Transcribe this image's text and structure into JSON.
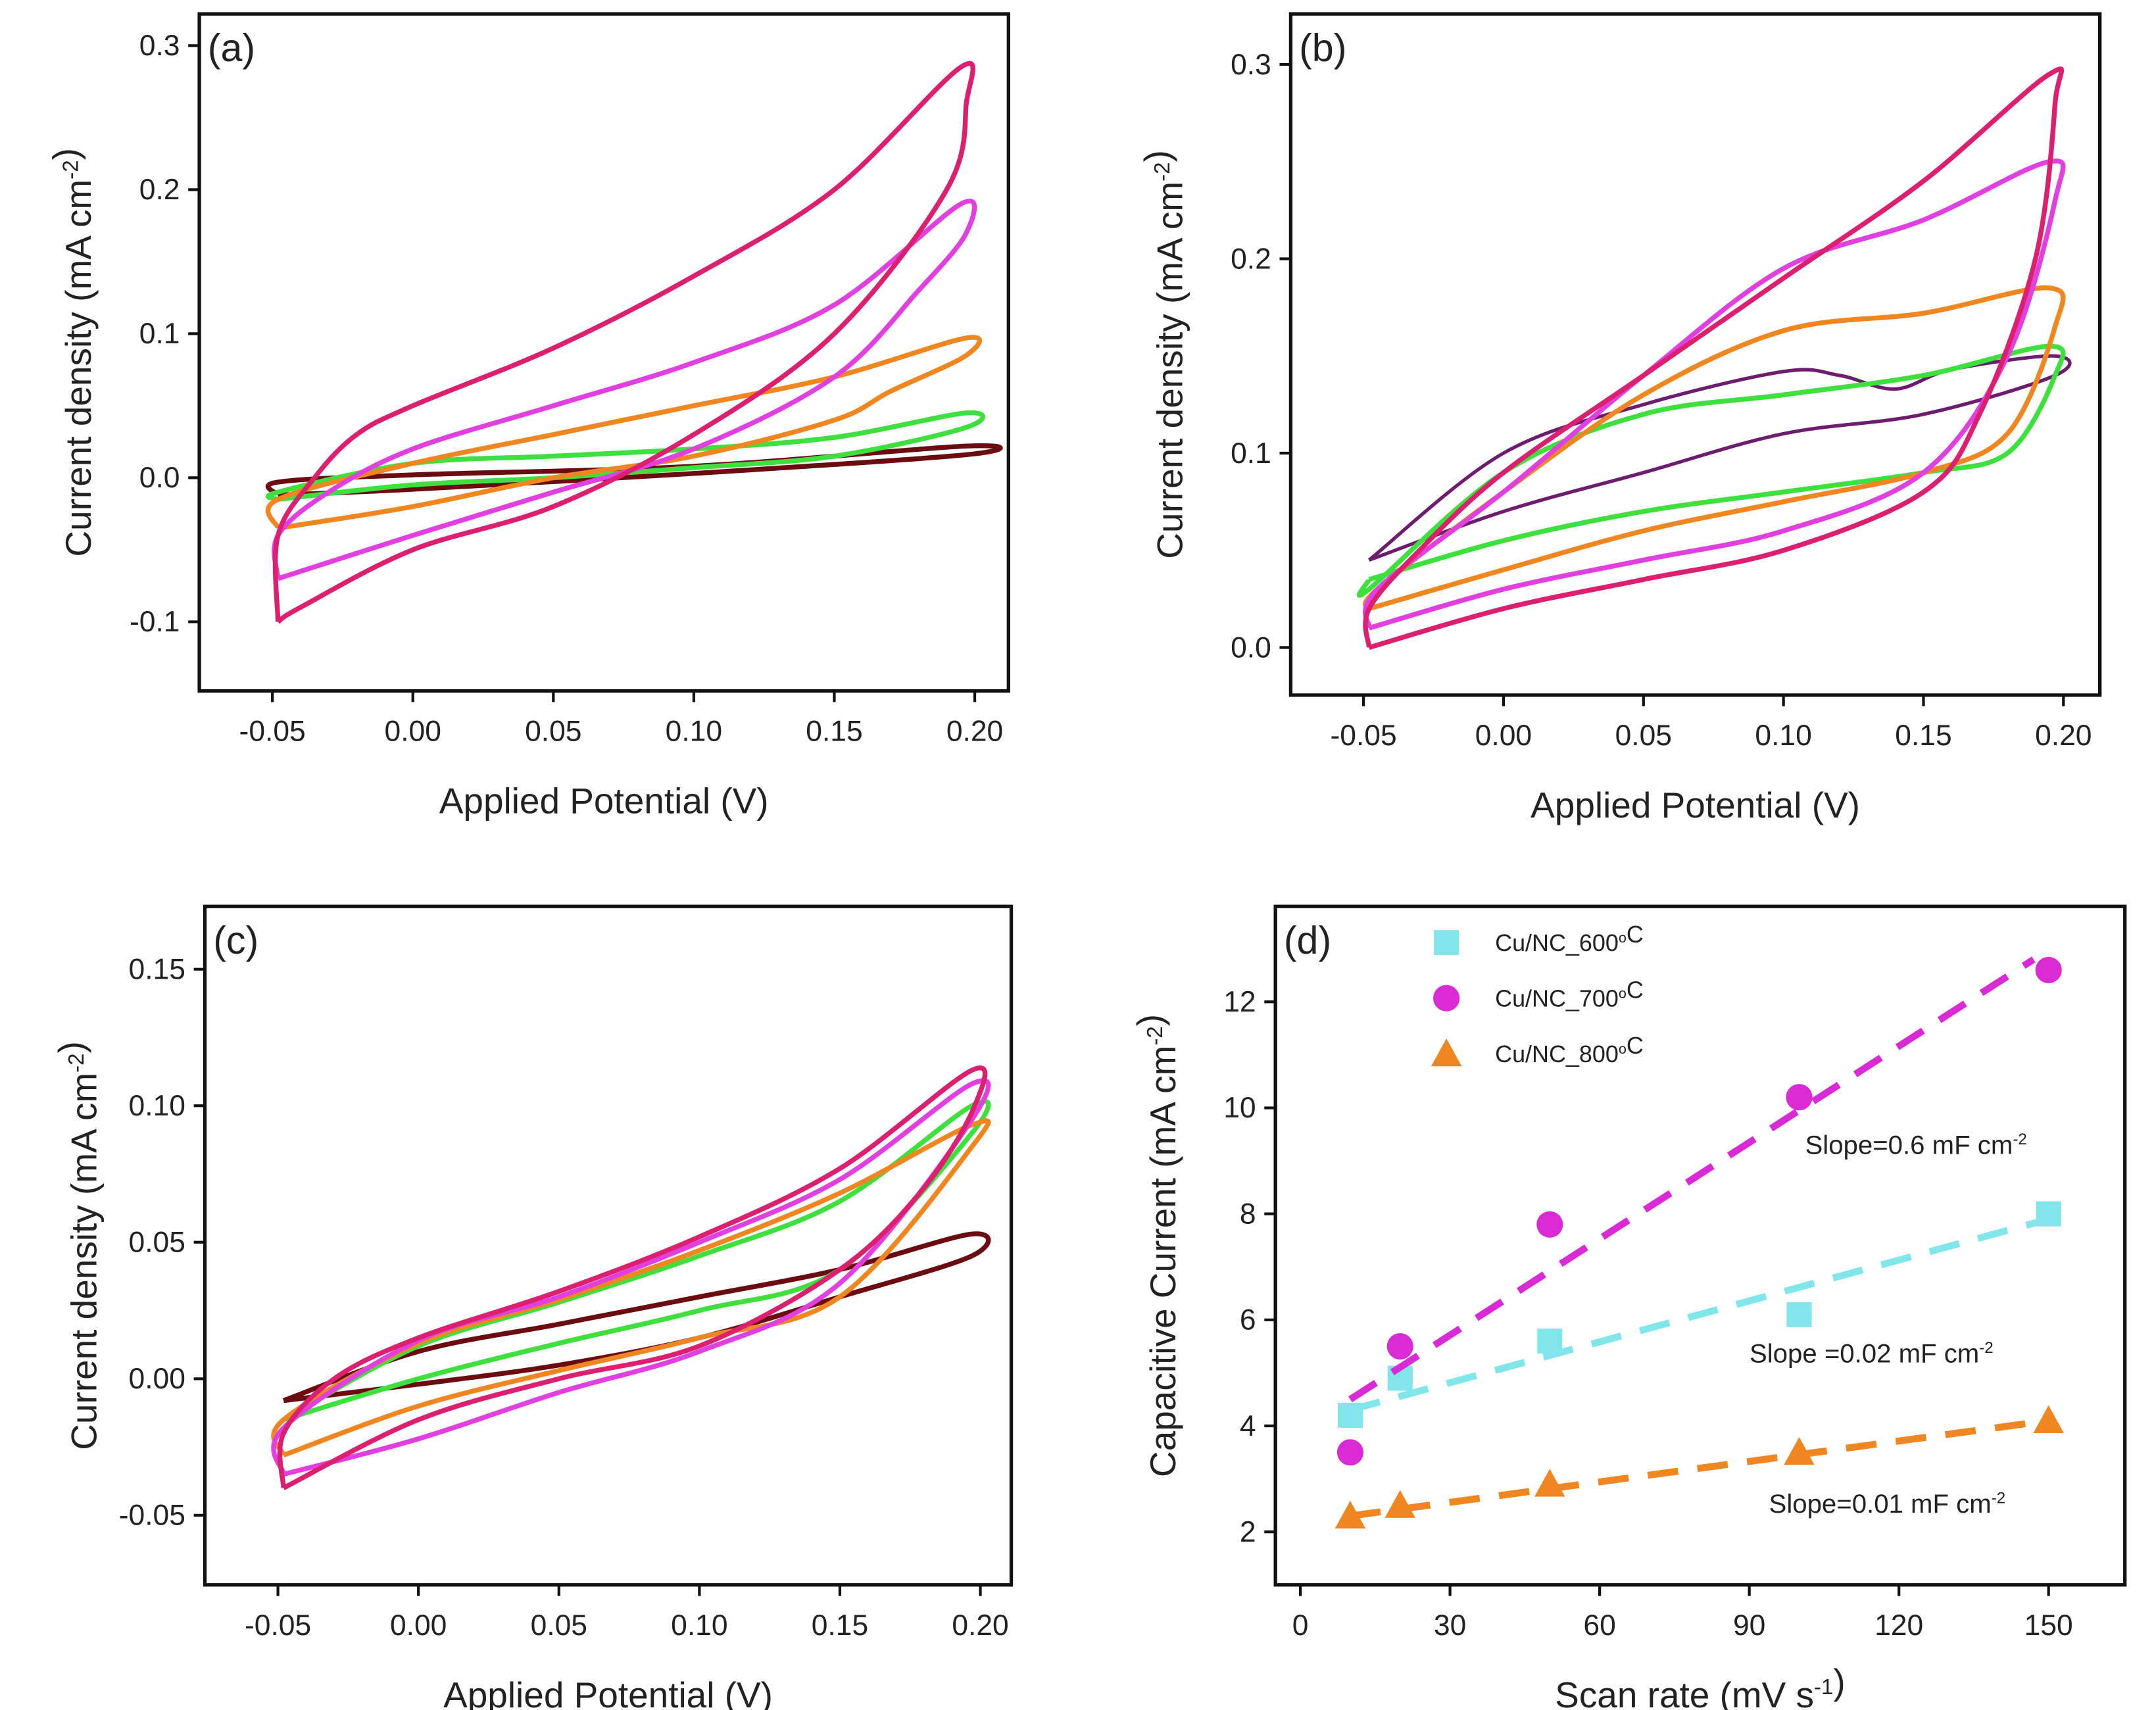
{
  "colors": {
    "crimson": "#dc1f6e",
    "magenta": "#e23fe0",
    "orange": "#f0861f",
    "green": "#3ee03e",
    "darkred": "#6b0d10",
    "purple": "#6e1c6e",
    "cyan": "#80e6ea",
    "dmagenta": "#d92ad6"
  },
  "chart_data": [
    {
      "id": "a",
      "type": "line",
      "panel_label": "(a)",
      "xlabel": "Applied Potential (V)",
      "ylabel": "Current density (mA cm",
      "ylabel_sup": "-2",
      "ylabel_end": ")",
      "xlim": [
        -0.076,
        0.212
      ],
      "ylim": [
        -0.148,
        0.322
      ],
      "xticks": [
        "-0.05",
        "0.00",
        "0.05",
        "0.10",
        "0.15",
        "0.20"
      ],
      "yticks": [
        "-0.1",
        "0.0",
        "0.1",
        "0.2",
        "0.3"
      ],
      "series": [
        {
          "color": "darkred",
          "points": [
            [
              -0.048,
              -0.012
            ],
            [
              -0.048,
              -0.003
            ],
            [
              0,
              0.002
            ],
            [
              0.1,
              0.008
            ],
            [
              0.197,
              0.022
            ],
            [
              0.197,
              0.016
            ],
            [
              0.1,
              0.003
            ],
            [
              0,
              -0.008
            ],
            [
              -0.048,
              -0.012
            ]
          ]
        },
        {
          "color": "green",
          "points": [
            [
              -0.048,
              -0.015
            ],
            [
              -0.048,
              -0.01
            ],
            [
              0,
              0.01
            ],
            [
              0.05,
              0.015
            ],
            [
              0.1,
              0.02
            ],
            [
              0.15,
              0.028
            ],
            [
              0.197,
              0.045
            ],
            [
              0.197,
              0.035
            ],
            [
              0.15,
              0.015
            ],
            [
              0.1,
              0.007
            ],
            [
              0.05,
              0
            ],
            [
              0,
              -0.005
            ],
            [
              -0.048,
              -0.015
            ]
          ]
        },
        {
          "color": "orange",
          "points": [
            [
              -0.048,
              -0.035
            ],
            [
              -0.048,
              -0.015
            ],
            [
              0,
              0.01
            ],
            [
              0.05,
              0.03
            ],
            [
              0.1,
              0.05
            ],
            [
              0.15,
              0.07
            ],
            [
              0.197,
              0.097
            ],
            [
              0.197,
              0.085
            ],
            [
              0.17,
              0.06
            ],
            [
              0.15,
              0.04
            ],
            [
              0.1,
              0.015
            ],
            [
              0.05,
              0
            ],
            [
              0,
              -0.02
            ],
            [
              -0.048,
              -0.035
            ]
          ]
        },
        {
          "color": "magenta",
          "points": [
            [
              -0.048,
              -0.07
            ],
            [
              -0.048,
              -0.04
            ],
            [
              -0.03,
              -0.01
            ],
            [
              0,
              0.02
            ],
            [
              0.05,
              0.05
            ],
            [
              0.1,
              0.08
            ],
            [
              0.15,
              0.12
            ],
            [
              0.195,
              0.19
            ],
            [
              0.197,
              0.17
            ],
            [
              0.18,
              0.13
            ],
            [
              0.15,
              0.07
            ],
            [
              0.1,
              0.02
            ],
            [
              0.05,
              -0.01
            ],
            [
              0,
              -0.04
            ],
            [
              -0.048,
              -0.07
            ]
          ]
        },
        {
          "color": "crimson",
          "points": [
            [
              -0.048,
              -0.1
            ],
            [
              -0.048,
              -0.04
            ],
            [
              -0.035,
              0
            ],
            [
              -0.02,
              0.03
            ],
            [
              0,
              0.05
            ],
            [
              0.05,
              0.09
            ],
            [
              0.1,
              0.14
            ],
            [
              0.15,
              0.2
            ],
            [
              0.195,
              0.285
            ],
            [
              0.197,
              0.26
            ],
            [
              0.19,
              0.2
            ],
            [
              0.15,
              0.1
            ],
            [
              0.1,
              0.03
            ],
            [
              0.05,
              -0.02
            ],
            [
              0,
              -0.05
            ],
            [
              -0.04,
              -0.09
            ],
            [
              -0.048,
              -0.1
            ]
          ]
        }
      ]
    },
    {
      "id": "b",
      "type": "line",
      "panel_label": "(b)",
      "xlabel": "Applied Potential (V)",
      "ylabel": "Current density (mA cm",
      "ylabel_sup": "-2",
      "ylabel_end": ")",
      "xlim": [
        -0.076,
        0.213
      ],
      "ylim": [
        -0.0245,
        0.326
      ],
      "xticks": [
        "-0.05",
        "0.00",
        "0.05",
        "0.10",
        "0.15",
        "0.20"
      ],
      "yticks": [
        "0.0",
        "0.1",
        "0.2",
        "0.3"
      ],
      "series": [
        {
          "color": "purple",
          "points": [
            [
              -0.048,
              0.045
            ],
            [
              0,
              0.1
            ],
            [
              0.05,
              0.125
            ],
            [
              0.1,
              0.142
            ],
            [
              0.12,
              0.14
            ],
            [
              0.14,
              0.133
            ],
            [
              0.16,
              0.143
            ],
            [
              0.197,
              0.15
            ],
            [
              0.197,
              0.14
            ],
            [
              0.15,
              0.12
            ],
            [
              0.1,
              0.11
            ],
            [
              0.05,
              0.09
            ],
            [
              0,
              0.07
            ],
            [
              -0.048,
              0.045
            ]
          ]
        },
        {
          "color": "green",
          "points": [
            [
              -0.048,
              0.035
            ],
            [
              -0.048,
              0.03
            ],
            [
              0,
              0.09
            ],
            [
              0.05,
              0.12
            ],
            [
              0.1,
              0.13
            ],
            [
              0.15,
              0.14
            ],
            [
              0.195,
              0.155
            ],
            [
              0.197,
              0.14
            ],
            [
              0.18,
              0.1
            ],
            [
              0.15,
              0.09
            ],
            [
              0.1,
              0.08
            ],
            [
              0.05,
              0.07
            ],
            [
              0,
              0.055
            ],
            [
              -0.048,
              0.035
            ]
          ]
        },
        {
          "color": "orange",
          "points": [
            [
              -0.048,
              0.02
            ],
            [
              -0.045,
              0.03
            ],
            [
              0,
              0.08
            ],
            [
              0.05,
              0.13
            ],
            [
              0.1,
              0.163
            ],
            [
              0.15,
              0.172
            ],
            [
              0.195,
              0.185
            ],
            [
              0.197,
              0.165
            ],
            [
              0.18,
              0.11
            ],
            [
              0.15,
              0.09
            ],
            [
              0.1,
              0.075
            ],
            [
              0.05,
              0.06
            ],
            [
              0,
              0.04
            ],
            [
              -0.048,
              0.02
            ]
          ]
        },
        {
          "color": "magenta",
          "points": [
            [
              -0.048,
              0.01
            ],
            [
              -0.045,
              0.03
            ],
            [
              0,
              0.08
            ],
            [
              0.05,
              0.14
            ],
            [
              0.1,
              0.195
            ],
            [
              0.15,
              0.22
            ],
            [
              0.195,
              0.25
            ],
            [
              0.197,
              0.23
            ],
            [
              0.18,
              0.15
            ],
            [
              0.15,
              0.09
            ],
            [
              0.1,
              0.06
            ],
            [
              0.05,
              0.045
            ],
            [
              0,
              0.03
            ],
            [
              -0.048,
              0.01
            ]
          ]
        },
        {
          "color": "crimson",
          "points": [
            [
              -0.048,
              0
            ],
            [
              -0.048,
              0.02
            ],
            [
              -0.03,
              0.05
            ],
            [
              0,
              0.09
            ],
            [
              0.05,
              0.14
            ],
            [
              0.1,
              0.19
            ],
            [
              0.15,
              0.24
            ],
            [
              0.195,
              0.295
            ],
            [
              0.197,
              0.28
            ],
            [
              0.19,
              0.2
            ],
            [
              0.17,
              0.12
            ],
            [
              0.15,
              0.08
            ],
            [
              0.1,
              0.05
            ],
            [
              0.05,
              0.035
            ],
            [
              0,
              0.02
            ],
            [
              -0.048,
              0
            ]
          ]
        }
      ]
    },
    {
      "id": "c",
      "type": "line",
      "panel_label": "(c)",
      "xlabel": "Applied Potential (V)",
      "ylabel": "Current density (mA cm",
      "ylabel_sup": "-2",
      "ylabel_end": ")",
      "xlim": [
        -0.076,
        0.211
      ],
      "ylim": [
        -0.0755,
        0.173
      ],
      "xticks": [
        "-0.05",
        "0.00",
        "0.05",
        "0.10",
        "0.15",
        "0.20"
      ],
      "yticks": [
        "-0.05",
        "0.00",
        "0.05",
        "0.10",
        "0.15"
      ],
      "series": [
        {
          "color": "darkred",
          "points": [
            [
              -0.048,
              -0.008
            ],
            [
              0,
              0.01
            ],
            [
              0.05,
              0.02
            ],
            [
              0.1,
              0.03
            ],
            [
              0.15,
              0.04
            ],
            [
              0.197,
              0.053
            ],
            [
              0.197,
              0.045
            ],
            [
              0.15,
              0.03
            ],
            [
              0.1,
              0.015
            ],
            [
              0.05,
              0.005
            ],
            [
              0,
              -0.002
            ],
            [
              -0.048,
              -0.008
            ]
          ]
        },
        {
          "color": "green",
          "points": [
            [
              -0.048,
              -0.015
            ],
            [
              0,
              0.012
            ],
            [
              0.05,
              0.028
            ],
            [
              0.1,
              0.045
            ],
            [
              0.15,
              0.065
            ],
            [
              0.197,
              0.1
            ],
            [
              0.197,
              0.09
            ],
            [
              0.15,
              0.04
            ],
            [
              0.1,
              0.025
            ],
            [
              0.05,
              0.013
            ],
            [
              0,
              0
            ],
            [
              -0.048,
              -0.015
            ]
          ]
        },
        {
          "color": "orange",
          "points": [
            [
              -0.048,
              -0.028
            ],
            [
              -0.048,
              -0.015
            ],
            [
              0,
              0.013
            ],
            [
              0.05,
              0.029
            ],
            [
              0.1,
              0.047
            ],
            [
              0.15,
              0.068
            ],
            [
              0.197,
              0.093
            ],
            [
              0.197,
              0.085
            ],
            [
              0.15,
              0.03
            ],
            [
              0.1,
              0.015
            ],
            [
              0.05,
              0.003
            ],
            [
              0,
              -0.01
            ],
            [
              -0.048,
              -0.028
            ]
          ]
        },
        {
          "color": "magenta",
          "points": [
            [
              -0.048,
              -0.035
            ],
            [
              -0.048,
              -0.018
            ],
            [
              0,
              0.014
            ],
            [
              0.05,
              0.03
            ],
            [
              0.1,
              0.05
            ],
            [
              0.15,
              0.073
            ],
            [
              0.197,
              0.108
            ],
            [
              0.197,
              0.095
            ],
            [
              0.15,
              0.035
            ],
            [
              0.1,
              0.01
            ],
            [
              0.05,
              -0.005
            ],
            [
              0,
              -0.022
            ],
            [
              -0.048,
              -0.035
            ]
          ]
        },
        {
          "color": "crimson",
          "points": [
            [
              -0.048,
              -0.04
            ],
            [
              -0.048,
              -0.02
            ],
            [
              -0.03,
              0
            ],
            [
              0,
              0.015
            ],
            [
              0.05,
              0.032
            ],
            [
              0.1,
              0.052
            ],
            [
              0.15,
              0.077
            ],
            [
              0.197,
              0.113
            ],
            [
              0.198,
              0.1
            ],
            [
              0.18,
              0.07
            ],
            [
              0.15,
              0.04
            ],
            [
              0.1,
              0.012
            ],
            [
              0.05,
              0
            ],
            [
              0,
              -0.015
            ],
            [
              -0.048,
              -0.04
            ]
          ]
        }
      ]
    },
    {
      "id": "d",
      "type": "scatter",
      "panel_label": "(d)",
      "xlabel": "Scan rate (mV s",
      "xlabel_sup": "-1",
      "xlabel_end": ")",
      "ylabel": "Capacitive Current (mA cm",
      "ylabel_sup": "-2",
      "ylabel_end": ")",
      "xlim": [
        -5,
        165.3
      ],
      "ylim": [
        1.0,
        13.8
      ],
      "xticks": [
        "0",
        "30",
        "60",
        "90",
        "120",
        "150"
      ],
      "yticks": [
        "2",
        "4",
        "6",
        "8",
        "10",
        "12"
      ],
      "x": [
        10,
        20,
        50,
        100,
        150
      ],
      "series": [
        {
          "name": "Cu/NC_600",
          "name_sup": "o",
          "name_end": "C",
          "marker": "square",
          "color": "cyan",
          "values": [
            4.2,
            4.9,
            5.6,
            6.1,
            8.0
          ],
          "fit": [
            [
              10,
              4.3
            ],
            [
              150,
              7.9
            ]
          ]
        },
        {
          "name": "Cu/NC_700",
          "name_sup": "o",
          "name_end": "C",
          "marker": "circle",
          "color": "dmagenta",
          "values": [
            3.5,
            5.5,
            7.8,
            10.2,
            12.6
          ],
          "fit": [
            [
              10,
              4.5
            ],
            [
              147,
              12.8
            ]
          ]
        },
        {
          "name": "Cu/NC_800",
          "name_sup": "o",
          "name_end": "C",
          "marker": "triangle",
          "color": "orange",
          "values": [
            2.3,
            2.5,
            2.9,
            3.5,
            4.1
          ],
          "fit": [
            [
              10,
              2.3
            ],
            [
              150,
              4.1
            ]
          ]
        }
      ],
      "legend_position": "top-left",
      "annotations": [
        {
          "text": "Slope=0.6 mF cm",
          "sup": "-2"
        },
        {
          "text": "Slope =0.02 mF cm",
          "sup": "-2"
        },
        {
          "text": "Slope=0.01 mF cm",
          "sup": "-2"
        }
      ]
    }
  ]
}
